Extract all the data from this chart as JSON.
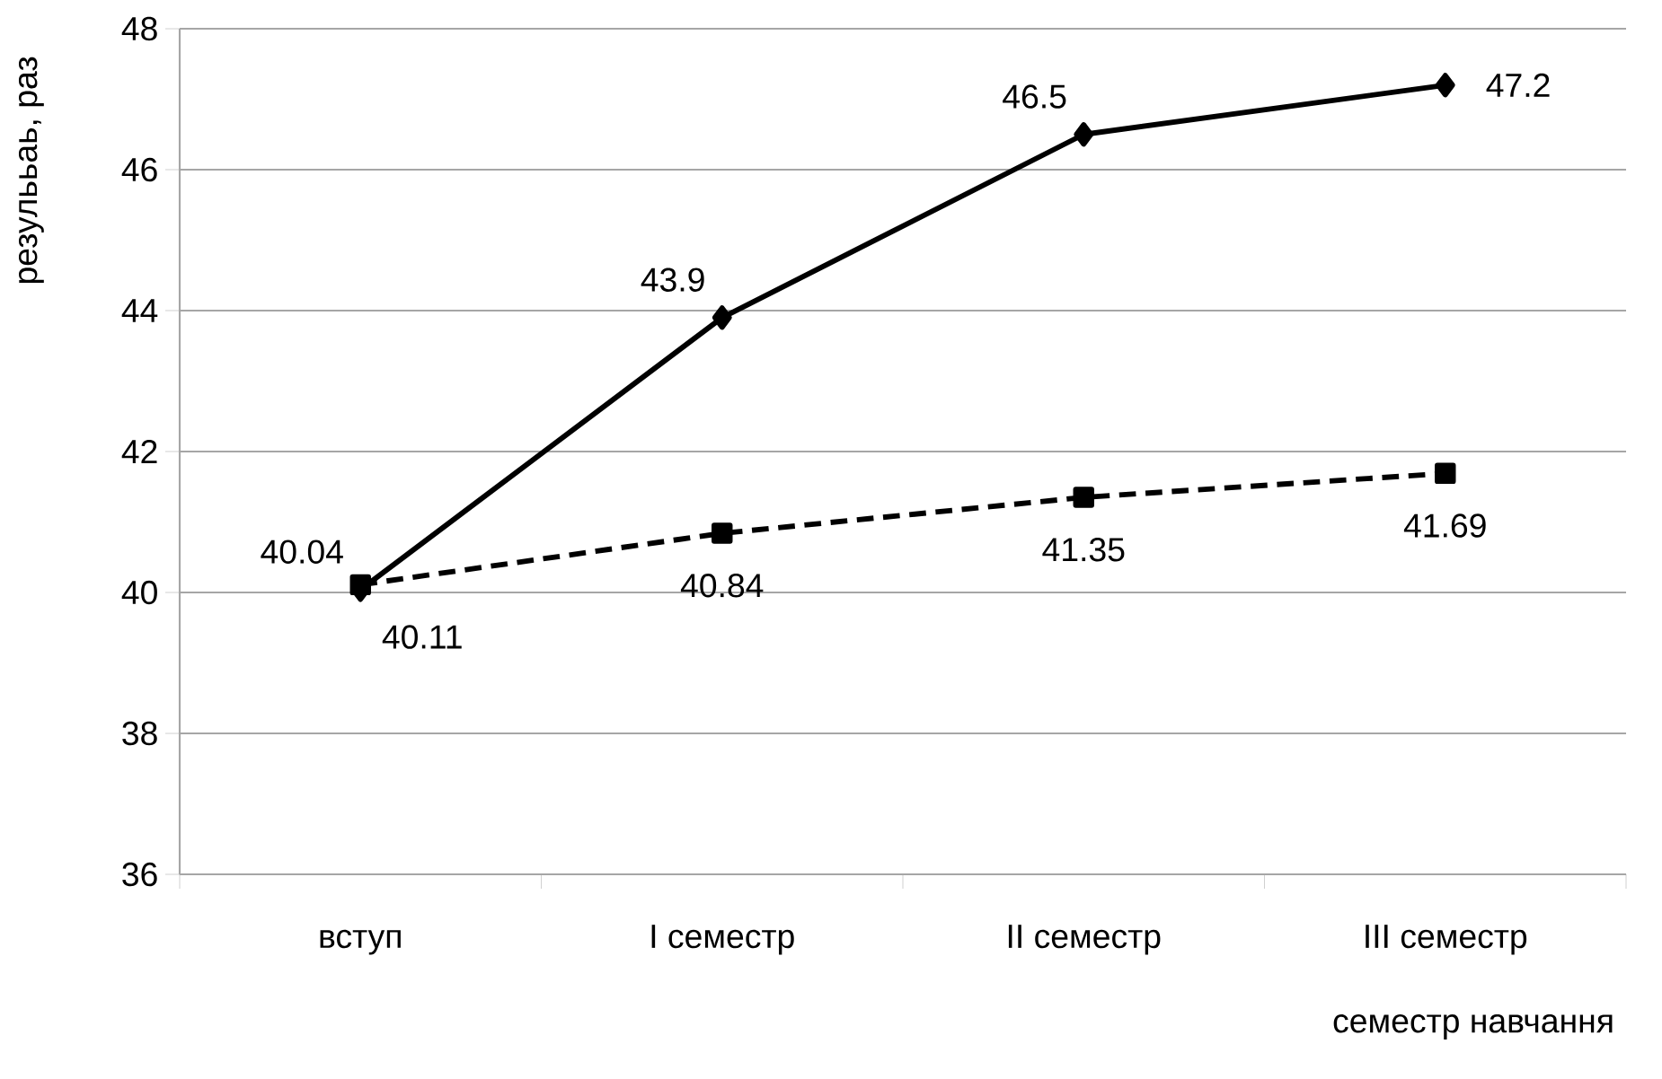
{
  "chart_data": {
    "type": "line",
    "xlabel": "семестр навчання",
    "ylabel": "резулььаь, раз",
    "categories": [
      "вступ",
      "I семестр",
      "II семестр",
      "III семестр"
    ],
    "series": [
      {
        "color": "#000000",
        "values": [
          40.04,
          43.9,
          46.5,
          47.2
        ],
        "marker": "diamond",
        "line_style": "solid"
      },
      {
        "color": "#000000",
        "values": [
          40.11,
          40.84,
          41.35,
          41.69
        ],
        "marker": "square",
        "line_style": "dashed"
      }
    ],
    "ylim": [
      36,
      48
    ],
    "yticks": [
      36,
      38,
      40,
      42,
      44,
      46,
      48
    ],
    "grid": "y",
    "legend": false,
    "data_labels": true
  }
}
